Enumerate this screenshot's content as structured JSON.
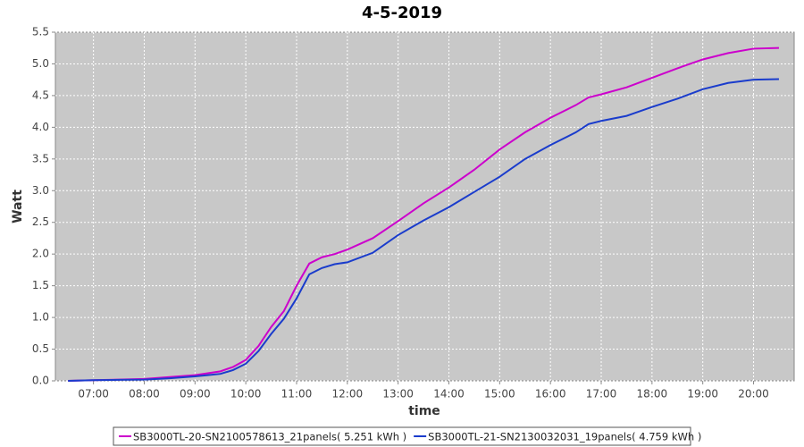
{
  "chart_data": {
    "type": "line",
    "title": "4-5-2019",
    "x_label": "time",
    "y_label": "Watt",
    "x": [
      6.5,
      7,
      7.5,
      8,
      8.5,
      9,
      9.25,
      9.5,
      9.75,
      10,
      10.25,
      10.5,
      10.75,
      11,
      11.25,
      11.5,
      11.75,
      12,
      12.5,
      13,
      13.5,
      14,
      14.5,
      15,
      15.5,
      16,
      16.5,
      16.75,
      17,
      17.5,
      18,
      18.5,
      19,
      19.5,
      20,
      20.5
    ],
    "series": [
      {
        "name": "SB3000TL-20-SN2100578613_21panels( 5.251 kWh )",
        "color": "#cc00cc",
        "values": [
          0,
          0.01,
          0.02,
          0.03,
          0.06,
          0.09,
          0.12,
          0.15,
          0.22,
          0.33,
          0.55,
          0.85,
          1.1,
          1.5,
          1.85,
          1.95,
          2.0,
          2.07,
          2.25,
          2.52,
          2.8,
          3.05,
          3.33,
          3.65,
          3.92,
          4.15,
          4.35,
          4.47,
          4.52,
          4.63,
          4.78,
          4.93,
          5.07,
          5.17,
          5.24,
          5.251
        ]
      },
      {
        "name": "SB3000TL-21-SN2130032031_19panels( 4.759 kWh )",
        "color": "#1a3ccc",
        "values": [
          0,
          0.01,
          0.015,
          0.02,
          0.04,
          0.07,
          0.09,
          0.11,
          0.17,
          0.27,
          0.47,
          0.74,
          0.98,
          1.3,
          1.68,
          1.78,
          1.84,
          1.87,
          2.02,
          2.3,
          2.53,
          2.74,
          2.98,
          3.22,
          3.5,
          3.72,
          3.92,
          4.05,
          4.1,
          4.18,
          4.32,
          4.45,
          4.6,
          4.7,
          4.75,
          4.759
        ]
      }
    ],
    "xlim": [
      6.25,
      20.8
    ],
    "ylim": [
      0,
      5.5
    ],
    "xticks": [
      {
        "value": 7,
        "label": "07:00"
      },
      {
        "value": 8,
        "label": "08:00"
      },
      {
        "value": 9,
        "label": "09:00"
      },
      {
        "value": 10,
        "label": "10:00"
      },
      {
        "value": 11,
        "label": "11:00"
      },
      {
        "value": 12,
        "label": "12:00"
      },
      {
        "value": 13,
        "label": "13:00"
      },
      {
        "value": 14,
        "label": "14:00"
      },
      {
        "value": 15,
        "label": "15:00"
      },
      {
        "value": 16,
        "label": "16:00"
      },
      {
        "value": 17,
        "label": "17:00"
      },
      {
        "value": 18,
        "label": "18:00"
      },
      {
        "value": 19,
        "label": "19:00"
      },
      {
        "value": 20,
        "label": "20:00"
      }
    ],
    "yticks": [
      {
        "value": 0,
        "label": "0.0"
      },
      0.5,
      {
        "value": 1,
        "label": "1.0"
      },
      1.5,
      {
        "value": 2,
        "label": "2.0"
      },
      2.5,
      {
        "value": 3,
        "label": "3.0"
      },
      3.5,
      {
        "value": 4,
        "label": "4.0"
      },
      4.5,
      {
        "value": 5,
        "label": "5.0"
      },
      5.5
    ],
    "grid": true,
    "legend": "bottom"
  }
}
